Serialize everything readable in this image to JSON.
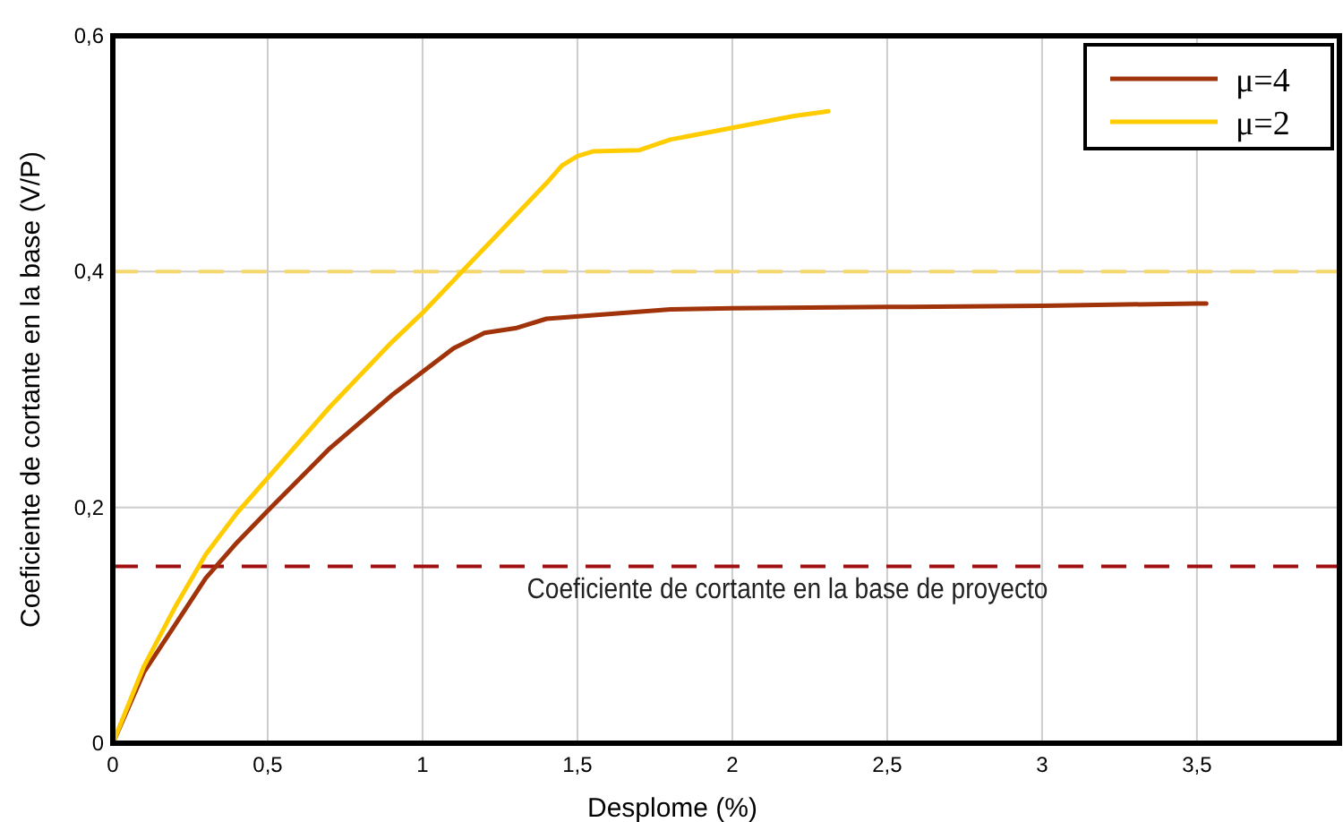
{
  "chart_data": {
    "type": "line",
    "xlabel": "Desplome (%)",
    "ylabel": "Coeficiente de cortante en la base (V/P)",
    "xlim": [
      0,
      3.96
    ],
    "ylim": [
      0,
      0.6
    ],
    "xticks": [
      {
        "value": 0,
        "label": "0"
      },
      {
        "value": 0.5,
        "label": "0,5"
      },
      {
        "value": 1,
        "label": "1"
      },
      {
        "value": 1.5,
        "label": "1,5"
      },
      {
        "value": 2,
        "label": "2"
      },
      {
        "value": 2.5,
        "label": "2,5"
      },
      {
        "value": 3,
        "label": "3"
      },
      {
        "value": 3.5,
        "label": "3,5"
      }
    ],
    "yticks": [
      {
        "value": 0,
        "label": "0"
      },
      {
        "value": 0.2,
        "label": "0,2"
      },
      {
        "value": 0.4,
        "label": "0,4"
      },
      {
        "value": 0.6,
        "label": "0,6"
      }
    ],
    "grid": true,
    "legend": "top right",
    "line_style": "solid",
    "series": [
      {
        "name": "μ=4",
        "color": "#a0330a",
        "x": [
          0,
          0.1,
          0.2,
          0.3,
          0.4,
          0.5,
          0.7,
          0.9,
          1.0,
          1.1,
          1.2,
          1.3,
          1.4,
          1.6,
          1.8,
          2.0,
          2.5,
          3.0,
          3.5,
          3.53
        ],
        "values": [
          0,
          0.06,
          0.1,
          0.14,
          0.17,
          0.197,
          0.25,
          0.295,
          0.315,
          0.335,
          0.348,
          0.352,
          0.36,
          0.364,
          0.368,
          0.369,
          0.37,
          0.371,
          0.373,
          0.373
        ]
      },
      {
        "name": "μ=2",
        "color": "#ffcc00",
        "x": [
          0,
          0.1,
          0.2,
          0.3,
          0.4,
          0.5,
          0.7,
          0.9,
          1.0,
          1.2,
          1.4,
          1.45,
          1.5,
          1.55,
          1.7,
          1.8,
          2.0,
          2.2,
          2.31
        ],
        "values": [
          0,
          0.065,
          0.115,
          0.16,
          0.195,
          0.225,
          0.285,
          0.34,
          0.365,
          0.42,
          0.475,
          0.49,
          0.498,
          0.502,
          0.503,
          0.512,
          0.522,
          0.532,
          0.536
        ]
      }
    ],
    "ref_lines": [
      {
        "axis": "y",
        "value": 0.4,
        "color": "#f5d76e",
        "line_style": "dashed"
      },
      {
        "axis": "y",
        "value": 0.15,
        "color": "#a01010",
        "line_style": "dashed",
        "label": "Coeficiente de cortante en la base de proyecto"
      }
    ]
  }
}
